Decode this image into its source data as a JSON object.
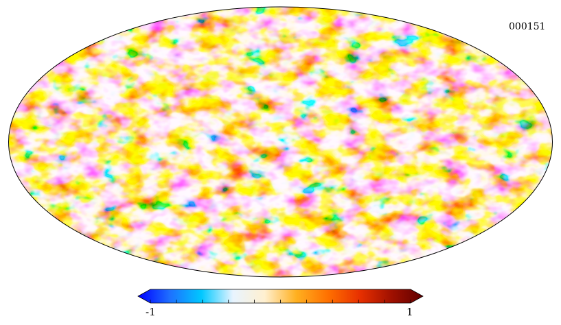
{
  "map": {
    "identifier": "000151",
    "projection": "mollweide",
    "outline_color": "#000000"
  },
  "colorbar": {
    "min_label": "-1",
    "max_label": "1",
    "min": -1,
    "max": 1,
    "tick_count": 11,
    "colormap": [
      "#0000ff",
      "#1e6fff",
      "#00c8ff",
      "#e8f4ff",
      "#fff0d0",
      "#ffb020",
      "#ff7000",
      "#e83000",
      "#a01000",
      "#600000"
    ]
  }
}
